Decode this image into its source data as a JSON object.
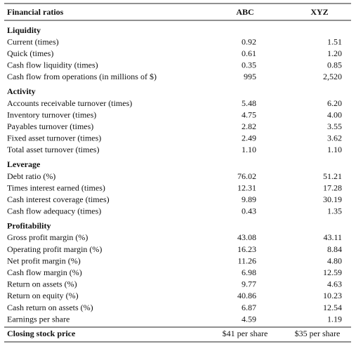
{
  "header": {
    "title": "Financial ratios",
    "columns": [
      "ABC",
      "XYZ"
    ]
  },
  "sections": [
    {
      "title": "Liquidity",
      "rows": [
        {
          "label": "Current (times)",
          "values": [
            "0.92",
            "1.51"
          ]
        },
        {
          "label": "Quick (times)",
          "values": [
            "0.61",
            "1.20"
          ]
        },
        {
          "label": "Cash flow liquidity (times)",
          "values": [
            "0.35",
            "0.85"
          ]
        },
        {
          "label": "Cash flow from operations (in millions of $)",
          "values": [
            "995",
            "2,520"
          ]
        }
      ]
    },
    {
      "title": "Activity",
      "rows": [
        {
          "label": "Accounts receivable turnover (times)",
          "values": [
            "5.48",
            "6.20"
          ]
        },
        {
          "label": "Inventory turnover (times)",
          "values": [
            "4.75",
            "4.00"
          ]
        },
        {
          "label": "Payables turnover (times)",
          "values": [
            "2.82",
            "3.55"
          ]
        },
        {
          "label": "Fixed asset turnover (times)",
          "values": [
            "2.49",
            "3.62"
          ]
        },
        {
          "label": "Total asset turnover (times)",
          "values": [
            "1.10",
            "1.10"
          ]
        }
      ]
    },
    {
      "title": "Leverage",
      "rows": [
        {
          "label": "Debt ratio (%)",
          "values": [
            "76.02",
            "51.21"
          ]
        },
        {
          "label": "Times interest earned (times)",
          "values": [
            "12.31",
            "17.28"
          ]
        },
        {
          "label": "Cash interest coverage (times)",
          "values": [
            "9.89",
            "30.19"
          ]
        },
        {
          "label": "Cash flow adequacy (times)",
          "values": [
            "0.43",
            "1.35"
          ]
        }
      ]
    },
    {
      "title": "Profitability",
      "rows": [
        {
          "label": "Gross profit margin (%)",
          "values": [
            "43.08",
            "43.11"
          ]
        },
        {
          "label": "Operating profit margin (%)",
          "values": [
            "16.23",
            "8.84"
          ]
        },
        {
          "label": "Net profit margin (%)",
          "values": [
            "11.26",
            "4.80"
          ]
        },
        {
          "label": "Cash flow margin (%)",
          "values": [
            "6.98",
            "12.59"
          ]
        },
        {
          "label": "Return on assets (%)",
          "values": [
            "9.77",
            "4.63"
          ]
        },
        {
          "label": "Return on equity (%)",
          "values": [
            "40.86",
            "10.23"
          ]
        },
        {
          "label": "Cash return on assets (%)",
          "values": [
            "6.87",
            "12.54"
          ]
        },
        {
          "label": "Earnings per share",
          "values": [
            "4.59",
            "1.19"
          ]
        }
      ]
    }
  ],
  "footer": {
    "label": "Closing stock price",
    "values": [
      "$41 per share",
      "$35 per share"
    ]
  }
}
